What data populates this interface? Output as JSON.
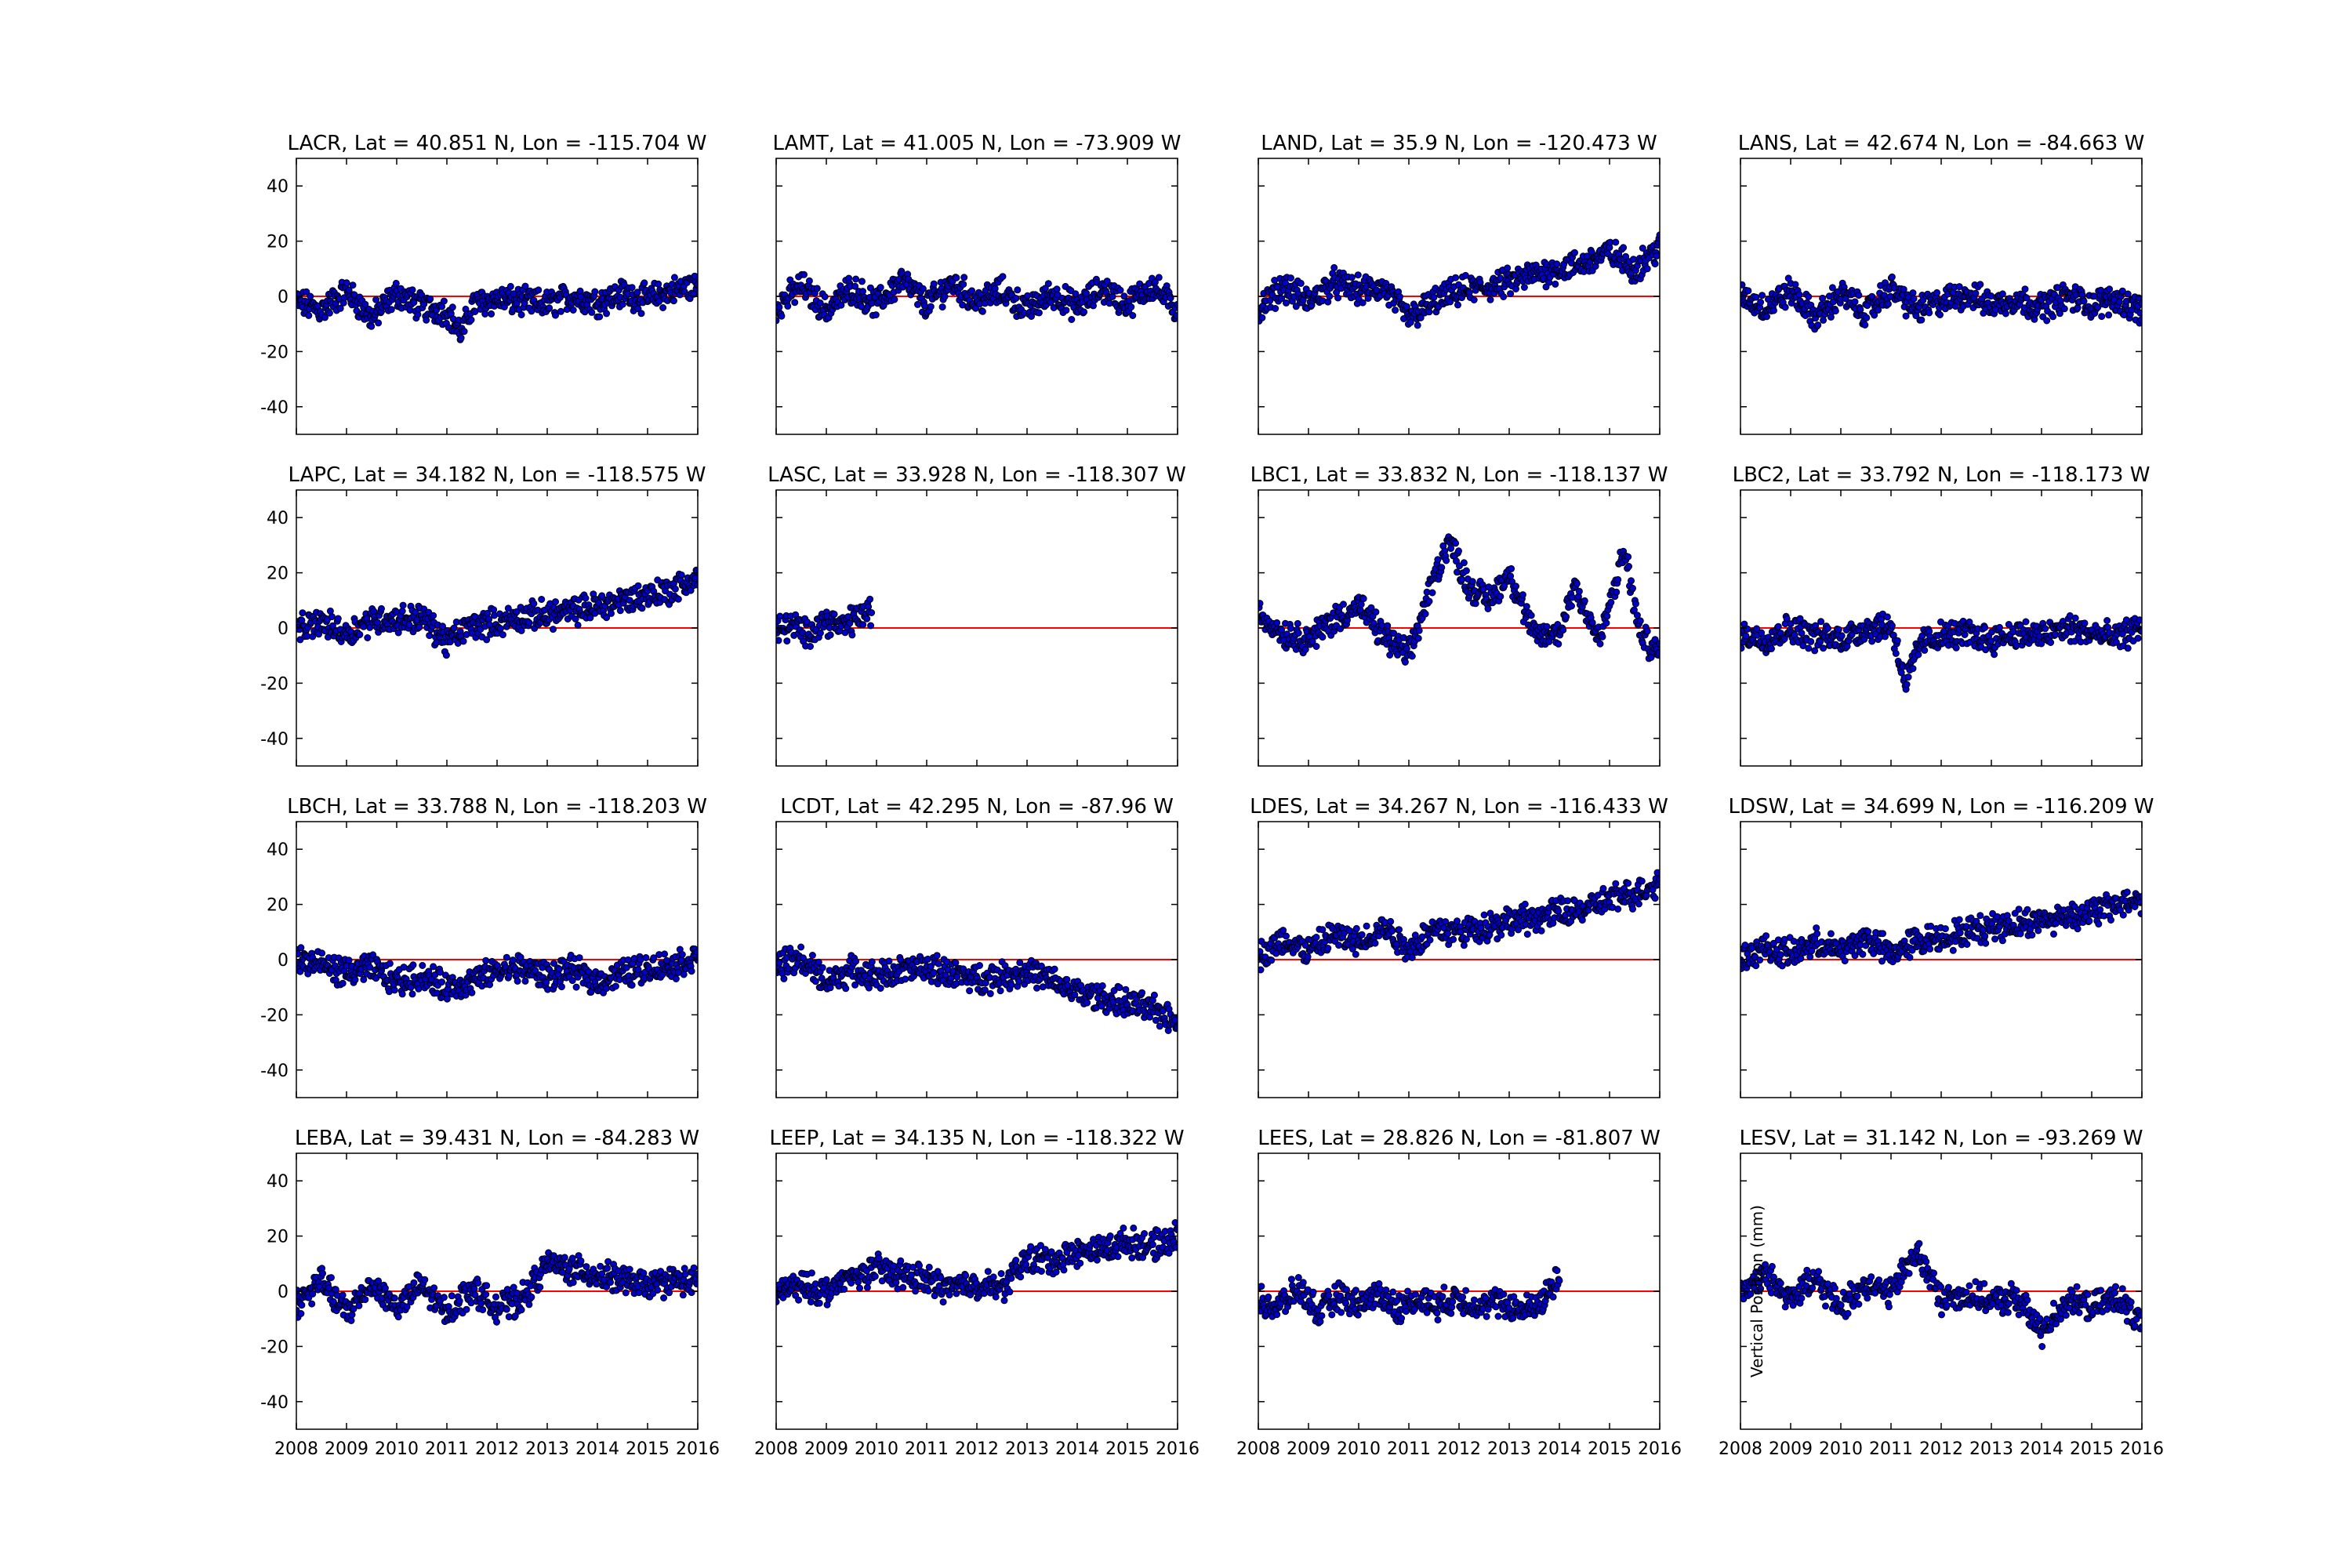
{
  "chart_data": {
    "type": "scatter",
    "layout": "grid 4 rows x 4 columns, shared axes",
    "shared_x_range": [
      2008,
      2016
    ],
    "shared_y_range": [
      -50,
      50
    ],
    "x_ticks": [
      "2008",
      "2009",
      "2010",
      "2011",
      "2012",
      "2013",
      "2014",
      "2015",
      "2016"
    ],
    "y_ticks": [
      40,
      20,
      0,
      -20,
      -40
    ],
    "ylabel": "Vertical Position (mm)",
    "reference_line": {
      "y": 0,
      "color": "#ff0000"
    },
    "marker": {
      "fill": "#0000cc",
      "edge": "#000000"
    },
    "grid": false,
    "legend": "none",
    "panels": [
      {
        "title": "LACR, Lat = 40.851 N, Lon = -115.704 W",
        "x": [
          2008.0,
          2008.5,
          2009.0,
          2009.5,
          2010.0,
          2010.5,
          2011.0,
          2011.3,
          2011.5,
          2012.0,
          2012.5,
          2013.0,
          2013.5,
          2014.0,
          2014.5,
          2015.0,
          2015.5,
          2016.0
        ],
        "y": [
          -2,
          -5,
          2,
          -8,
          1,
          -4,
          -5,
          -14,
          -3,
          -1,
          -2,
          -3,
          0,
          -2,
          1,
          -1,
          2,
          4
        ]
      },
      {
        "title": "LAMT, Lat = 41.005 N, Lon = -73.909 W",
        "x": [
          2008.0,
          2008.5,
          2009.0,
          2009.5,
          2010.0,
          2010.5,
          2011.0,
          2011.5,
          2012.0,
          2012.5,
          2013.0,
          2013.5,
          2014.0,
          2014.5,
          2015.0,
          2015.5,
          2016.0
        ],
        "y": [
          -4,
          4,
          -5,
          3,
          -3,
          6,
          -3,
          5,
          -2,
          2,
          -5,
          1,
          -4,
          3,
          -3,
          4,
          -5
        ]
      },
      {
        "title": "LAND, Lat = 35.9 N, Lon = -120.473 W",
        "x": [
          2008.0,
          2008.5,
          2009.0,
          2009.5,
          2010.0,
          2010.5,
          2011.0,
          2011.5,
          2012.0,
          2012.5,
          2013.0,
          2013.5,
          2014.0,
          2014.5,
          2015.0,
          2015.5,
          2016.0
        ],
        "y": [
          -5,
          4,
          -2,
          5,
          2,
          3,
          -8,
          -2,
          2,
          3,
          5,
          8,
          10,
          12,
          16,
          10,
          18
        ]
      },
      {
        "title": "LANS, Lat = 42.674 N, Lon = -84.663 W",
        "x": [
          2008.0,
          2008.5,
          2009.0,
          2009.5,
          2010.0,
          2010.5,
          2011.0,
          2011.5,
          2012.0,
          2012.5,
          2013.0,
          2013.5,
          2014.0,
          2014.5,
          2015.0,
          2015.5,
          2016.0
        ],
        "y": [
          0,
          -4,
          2,
          -8,
          1,
          -6,
          3,
          -5,
          -2,
          1,
          -3,
          -1,
          -4,
          0,
          -3,
          -1,
          -5
        ]
      },
      {
        "title": "LAPC, Lat = 34.182 N, Lon = -118.575 W",
        "x": [
          2008.0,
          2008.5,
          2009.0,
          2009.5,
          2010.0,
          2010.5,
          2011.0,
          2011.5,
          2012.0,
          2012.5,
          2013.0,
          2013.5,
          2014.0,
          2014.5,
          2015.0,
          2015.5,
          2016.0
        ],
        "y": [
          -1,
          2,
          -2,
          3,
          3,
          4,
          -5,
          1,
          2,
          4,
          5,
          6,
          8,
          10,
          12,
          14,
          18
        ]
      },
      {
        "title": "LASC, Lat = 33.928 N, Lon = -118.307 W",
        "x": [
          2008.0,
          2008.3,
          2008.6,
          2009.0,
          2009.3,
          2009.6,
          2009.9
        ],
        "y": [
          -1,
          1,
          -2,
          3,
          0,
          4,
          6
        ]
      },
      {
        "title": "LBC1, Lat = 33.832 N, Lon = -118.137 W",
        "x": [
          2008.0,
          2008.5,
          2009.0,
          2009.5,
          2010.0,
          2010.5,
          2011.0,
          2011.5,
          2011.8,
          2012.2,
          2012.6,
          2013.0,
          2013.5,
          2014.0,
          2014.3,
          2014.8,
          2015.3,
          2015.6,
          2016.0
        ],
        "y": [
          5,
          -2,
          -4,
          3,
          8,
          -3,
          -10,
          18,
          32,
          15,
          10,
          20,
          -3,
          -2,
          16,
          -5,
          28,
          -2,
          -10
        ]
      },
      {
        "title": "LBC2, Lat = 33.792 N, Lon = -118.173 W",
        "x": [
          2008.0,
          2008.5,
          2009.0,
          2009.5,
          2010.0,
          2010.5,
          2011.0,
          2011.3,
          2011.6,
          2012.0,
          2012.5,
          2013.0,
          2013.5,
          2014.0,
          2014.5,
          2015.0,
          2015.5,
          2016.0
        ],
        "y": [
          -2,
          -4,
          0,
          -3,
          -4,
          0,
          1,
          -20,
          -5,
          -3,
          -2,
          -4,
          -2,
          -3,
          0,
          -2,
          -4,
          1
        ]
      },
      {
        "title": "LBCH, Lat = 33.788 N, Lon = -118.203 W",
        "x": [
          2008.0,
          2008.5,
          2009.0,
          2009.5,
          2010.0,
          2010.5,
          2011.0,
          2011.5,
          2012.0,
          2012.5,
          2013.0,
          2013.5,
          2014.0,
          2014.5,
          2015.0,
          2015.5,
          2016.0
        ],
        "y": [
          0,
          -2,
          -5,
          -3,
          -8,
          -6,
          -10,
          -8,
          -4,
          -3,
          -6,
          -4,
          -8,
          -5,
          -3,
          -2,
          1
        ]
      },
      {
        "title": "LCDT, Lat = 42.295 N, Lon = -87.96 W",
        "x": [
          2008.0,
          2008.5,
          2009.0,
          2009.5,
          2010.0,
          2010.5,
          2011.0,
          2011.5,
          2012.0,
          2012.5,
          2013.0,
          2013.5,
          2014.0,
          2014.5,
          2015.0,
          2015.5,
          2016.0
        ],
        "y": [
          -2,
          0,
          -8,
          -4,
          -6,
          -4,
          -3,
          -5,
          -7,
          -6,
          -4,
          -8,
          -12,
          -14,
          -16,
          -18,
          -22
        ]
      },
      {
        "title": "LDES, Lat = 34.267 N, Lon = -116.433 W",
        "x": [
          2008.0,
          2008.5,
          2009.0,
          2009.5,
          2010.0,
          2010.5,
          2011.0,
          2011.5,
          2012.0,
          2012.5,
          2013.0,
          2013.5,
          2014.0,
          2014.5,
          2015.0,
          2015.5,
          2016.0
        ],
        "y": [
          1,
          7,
          3,
          9,
          6,
          12,
          4,
          11,
          10,
          12,
          14,
          15,
          17,
          18,
          22,
          24,
          28
        ]
      },
      {
        "title": "LDSW, Lat = 34.699 N, Lon = -116.209 W",
        "x": [
          2008.0,
          2008.5,
          2009.0,
          2009.5,
          2010.0,
          2010.5,
          2011.0,
          2011.5,
          2012.0,
          2012.5,
          2013.0,
          2013.5,
          2014.0,
          2014.5,
          2015.0,
          2015.5,
          2016.0
        ],
        "y": [
          1,
          4,
          2,
          6,
          3,
          8,
          2,
          7,
          8,
          10,
          12,
          13,
          14,
          16,
          17,
          20,
          22
        ]
      },
      {
        "title": "LEBA, Lat = 39.431 N, Lon = -84.283 W",
        "x": [
          2008.0,
          2008.5,
          2009.0,
          2009.5,
          2010.0,
          2010.5,
          2011.0,
          2011.5,
          2012.0,
          2012.5,
          2013.0,
          2013.5,
          2014.0,
          2014.5,
          2015.0,
          2015.5,
          2016.0
        ],
        "y": [
          -5,
          4,
          -8,
          3,
          -6,
          2,
          -8,
          1,
          -6,
          -3,
          10,
          8,
          6,
          4,
          2,
          4,
          3
        ]
      },
      {
        "title": "LEEP, Lat = 34.135 N, Lon = -118.322 W",
        "x": [
          2008.0,
          2008.5,
          2009.0,
          2009.5,
          2010.0,
          2010.5,
          2011.0,
          2011.5,
          2012.0,
          2012.5,
          2013.0,
          2013.5,
          2014.0,
          2014.5,
          2015.0,
          2015.5,
          2016.0
        ],
        "y": [
          0,
          2,
          0,
          5,
          8,
          6,
          4,
          1,
          3,
          1,
          12,
          11,
          14,
          15,
          18,
          16,
          20
        ]
      },
      {
        "title": "LEES, Lat = 28.826 N, Lon = -81.807 W",
        "x": [
          2008.0,
          2008.4,
          2008.8,
          2009.2,
          2009.6,
          2010.0,
          2010.4,
          2010.8,
          2011.2,
          2011.6,
          2012.0,
          2012.4,
          2012.8,
          2013.2,
          2013.6,
          2014.0
        ],
        "y": [
          -3,
          -6,
          1,
          -8,
          -2,
          -5,
          -1,
          -6,
          -3,
          -5,
          -2,
          -6,
          -4,
          -7,
          -5,
          6
        ]
      },
      {
        "title": "LESV, Lat = 31.142 N, Lon = -93.269 W",
        "x": [
          2008.0,
          2008.5,
          2009.0,
          2009.5,
          2010.0,
          2010.5,
          2011.0,
          2011.5,
          2012.0,
          2012.5,
          2013.0,
          2013.5,
          2014.0,
          2014.5,
          2015.0,
          2015.5,
          2016.0
        ],
        "y": [
          0,
          6,
          -2,
          4,
          -6,
          3,
          -1,
          15,
          -3,
          -1,
          -4,
          -2,
          -15,
          -3,
          -6,
          -2,
          -12
        ]
      }
    ]
  }
}
